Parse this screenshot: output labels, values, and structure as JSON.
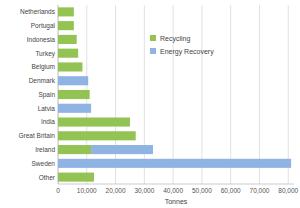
{
  "chart_data": {
    "type": "bar",
    "orientation": "horizontal",
    "stacked": true,
    "categories": [
      "Netherlands",
      "Portugal",
      "Indonesia",
      "Turkey",
      "Belgium",
      "Denmark",
      "Spain",
      "Latvia",
      "India",
      "Great Britain",
      "Ireland",
      "Sweden",
      "Other"
    ],
    "series": [
      {
        "name": "Recycling",
        "color": "#92c353",
        "values": [
          5500,
          5500,
          6500,
          7000,
          8500,
          0,
          11000,
          0,
          25000,
          27000,
          11500,
          0,
          12500
        ]
      },
      {
        "name": "Energy Recovery",
        "color": "#8fb4e3",
        "values": [
          0,
          0,
          0,
          0,
          0,
          10500,
          0,
          11500,
          0,
          0,
          21500,
          81000,
          0
        ]
      }
    ],
    "x_label": "Tonnes",
    "xlim": [
      0,
      82000
    ],
    "xticks": [
      0,
      {
        "value": 10000,
        "label": "10,000"
      },
      {
        "value": 20000,
        "label": "20,000"
      },
      {
        "value": 30000,
        "label": "30,000"
      },
      {
        "value": 40000,
        "label": "40,000"
      },
      {
        "value": 50000,
        "label": "50,000"
      },
      {
        "value": 60000,
        "label": "60,000"
      },
      {
        "value": 70000,
        "label": "70,000"
      },
      {
        "value": 80000,
        "label": "80,000"
      }
    ],
    "grid": true,
    "legend": "upper center"
  }
}
